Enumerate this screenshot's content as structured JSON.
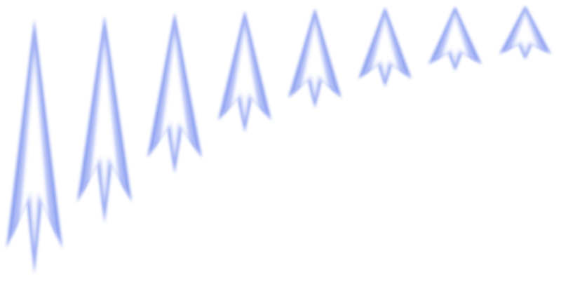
{
  "background_color": "#ffffff",
  "arrow_style": {
    "edge_color": "#8a9ef0",
    "glow_color": "#aebbf6",
    "core_color": "#ffffff"
  },
  "arrows": [
    {
      "icon": "arrow-up-icon"
    },
    {
      "icon": "arrow-up-icon"
    },
    {
      "icon": "arrow-up-icon"
    },
    {
      "icon": "arrow-up-icon"
    },
    {
      "icon": "arrow-up-icon"
    },
    {
      "icon": "arrow-up-icon"
    },
    {
      "icon": "arrow-up-icon"
    },
    {
      "icon": "arrow-up-icon"
    }
  ]
}
